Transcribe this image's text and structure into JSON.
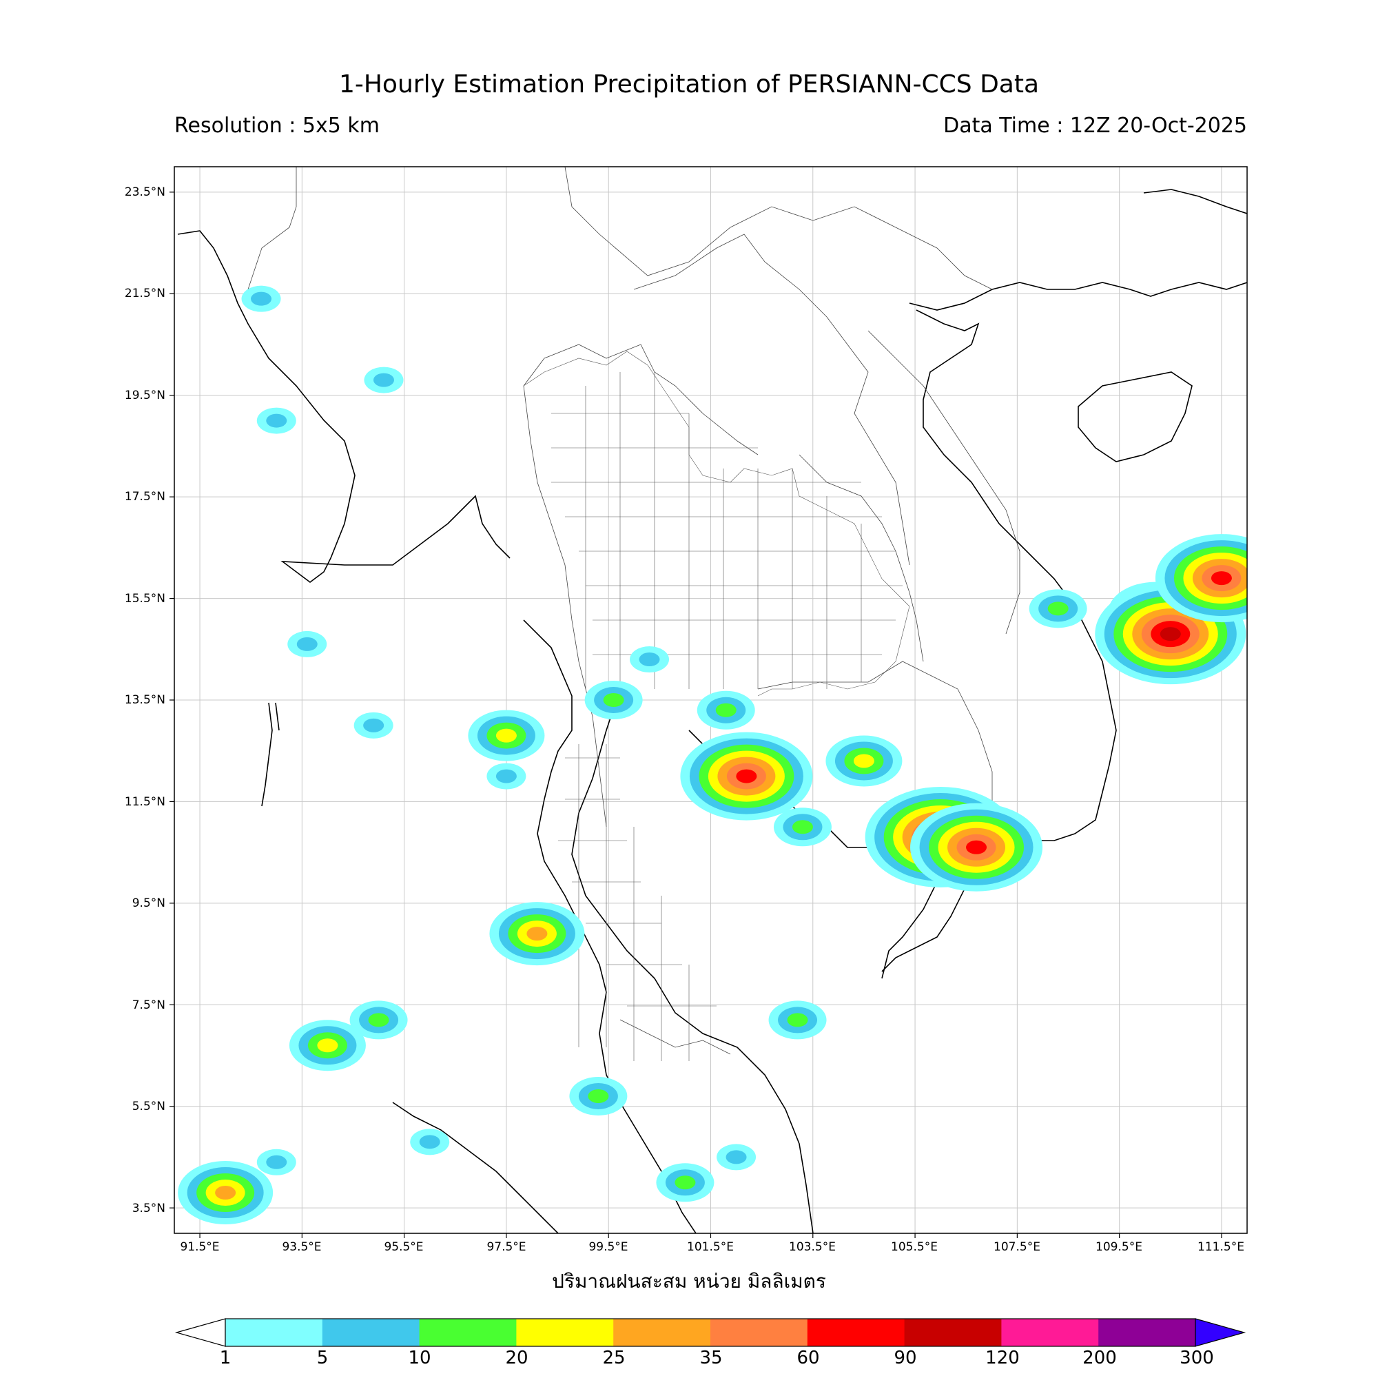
{
  "header": {
    "title": "1-Hourly Estimation Precipitation of PERSIANN-CCS Data",
    "resolution": "Resolution : 5x5 km",
    "data_time": "Data Time : 12Z 20-Oct-2025"
  },
  "map": {
    "projection": "PlateCarree",
    "lon_range": [
      91.0,
      112.0
    ],
    "lat_range": [
      3.0,
      24.0
    ],
    "lat_ticks": [
      "23.5°N",
      "21.5°N",
      "19.5°N",
      "17.5°N",
      "15.5°N",
      "13.5°N",
      "11.5°N",
      "9.5°N",
      "7.5°N",
      "5.5°N",
      "3.5°N"
    ],
    "lon_ticks": [
      "91.5°E",
      "93.5°E",
      "95.5°E",
      "97.5°E",
      "99.5°E",
      "101.5°E",
      "103.5°E",
      "105.5°E",
      "107.5°E",
      "109.5°E",
      "111.5°E"
    ],
    "xlabel": "ปริมาณฝนสะสม หน่วย มิลลิเมตร",
    "gridlines": true
  },
  "colorbar": {
    "levels": [
      "1",
      "5",
      "10",
      "20",
      "25",
      "35",
      "60",
      "90",
      "120",
      "200",
      "300"
    ],
    "colors": [
      "#80ffff",
      "#40c8ec",
      "#49ff31",
      "#ffff00",
      "#ffa620",
      "#ff8040",
      "#ff0000",
      "#c80000",
      "#ff1a96",
      "#8e0096",
      "#3300ff"
    ]
  },
  "precip_cells": [
    {
      "lon": 92.7,
      "lat": 21.4,
      "level": 1
    },
    {
      "lon": 93.0,
      "lat": 19.0,
      "level": 1
    },
    {
      "lon": 95.1,
      "lat": 19.8,
      "level": 1
    },
    {
      "lon": 94.9,
      "lat": 13.0,
      "level": 1
    },
    {
      "lon": 93.6,
      "lat": 14.6,
      "level": 1
    },
    {
      "lon": 101.8,
      "lat": 13.3,
      "level": 2
    },
    {
      "lon": 99.6,
      "lat": 13.5,
      "level": 2
    },
    {
      "lon": 100.3,
      "lat": 14.3,
      "level": 1
    },
    {
      "lon": 97.5,
      "lat": 12.8,
      "level": 3
    },
    {
      "lon": 102.0,
      "lat": 12.3,
      "level": 3
    },
    {
      "lon": 102.2,
      "lat": 12.0,
      "level": 6
    },
    {
      "lon": 103.3,
      "lat": 11.0,
      "level": 2
    },
    {
      "lon": 104.5,
      "lat": 12.3,
      "level": 3
    },
    {
      "lon": 106.0,
      "lat": 10.8,
      "level": 7
    },
    {
      "lon": 106.7,
      "lat": 10.6,
      "level": 6
    },
    {
      "lon": 110.2,
      "lat": 15.2,
      "level": 4
    },
    {
      "lon": 110.5,
      "lat": 14.8,
      "level": 7
    },
    {
      "lon": 111.5,
      "lat": 15.9,
      "level": 6
    },
    {
      "lon": 108.3,
      "lat": 15.3,
      "level": 2
    },
    {
      "lon": 95.0,
      "lat": 7.2,
      "level": 2
    },
    {
      "lon": 94.0,
      "lat": 6.7,
      "level": 3
    },
    {
      "lon": 98.1,
      "lat": 8.9,
      "level": 4
    },
    {
      "lon": 101.0,
      "lat": 4.0,
      "level": 2
    },
    {
      "lon": 102.0,
      "lat": 4.5,
      "level": 1
    },
    {
      "lon": 96.0,
      "lat": 4.8,
      "level": 1
    },
    {
      "lon": 92.0,
      "lat": 3.8,
      "level": 4
    },
    {
      "lon": 93.0,
      "lat": 4.4,
      "level": 1
    },
    {
      "lon": 99.3,
      "lat": 5.7,
      "level": 2
    },
    {
      "lon": 103.2,
      "lat": 7.2,
      "level": 2
    },
    {
      "lon": 97.5,
      "lat": 12.0,
      "level": 1
    }
  ]
}
